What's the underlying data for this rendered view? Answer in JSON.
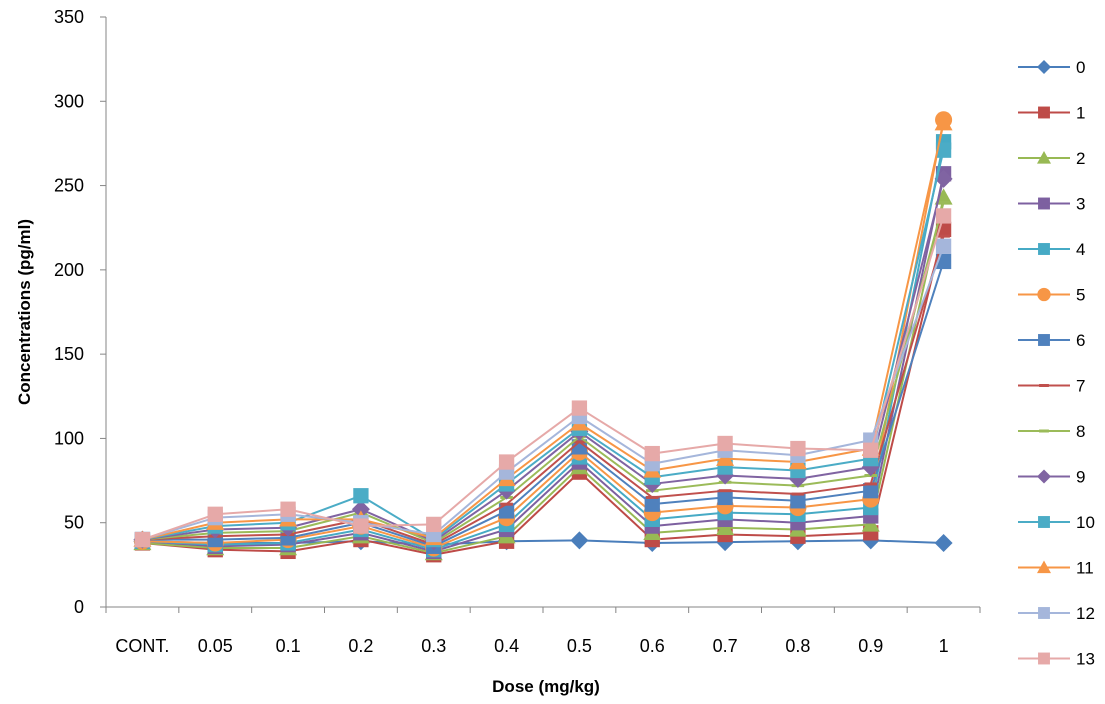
{
  "chart_data": {
    "type": "line",
    "title": "",
    "xlabel": "Dose (mg/kg)",
    "ylabel": "Concentrations (pg/ml)",
    "ylim": [
      0,
      350
    ],
    "y_ticks": [
      "0",
      "50",
      "100",
      "150",
      "200",
      "250",
      "300",
      "350"
    ],
    "grid": false,
    "legend_position": "right",
    "categories": [
      "CONT.",
      "0.05",
      "0.1",
      "0.2",
      "0.3",
      "0.4",
      "0.5",
      "0.6",
      "0.7",
      "0.8",
      "0.9",
      "1"
    ],
    "series": [
      {
        "name": "0",
        "color": "#4A7EBB",
        "marker": "diamond",
        "values": [
          39,
          38,
          38,
          39,
          37,
          39,
          39.5,
          38,
          38.5,
          39,
          39.5,
          38
        ]
      },
      {
        "name": "1",
        "color": "#BE4B48",
        "marker": "square",
        "values": [
          38,
          34,
          33,
          40,
          31,
          39,
          80,
          40,
          43,
          42,
          44,
          224
        ]
      },
      {
        "name": "2",
        "color": "#98B954",
        "marker": "triangle",
        "values": [
          38,
          35,
          35,
          42,
          32,
          42,
          83,
          44,
          47,
          46,
          49,
          243
        ]
      },
      {
        "name": "3",
        "color": "#7D60A0",
        "marker": "square",
        "values": [
          39,
          36,
          37,
          44,
          33,
          46,
          86,
          48,
          52,
          50,
          54,
          257
        ]
      },
      {
        "name": "4",
        "color": "#46AAC5",
        "marker": "square",
        "values": [
          39,
          37,
          38,
          46,
          34,
          49,
          89,
          52,
          56,
          55,
          59,
          276
        ]
      },
      {
        "name": "5",
        "color": "#F79646",
        "marker": "circle",
        "values": [
          39,
          38,
          40,
          48,
          35,
          53,
          92,
          56,
          60,
          59,
          64,
          289
        ]
      },
      {
        "name": "6",
        "color": "#4F81BD",
        "marker": "square",
        "values": [
          40,
          40,
          41,
          50,
          36,
          57,
          95,
          61,
          65,
          63,
          69,
          205
        ]
      },
      {
        "name": "7",
        "color": "#C0504D",
        "marker": "dash",
        "values": [
          40,
          42,
          43,
          52,
          37,
          61,
          98,
          65,
          69,
          67,
          73,
          220
        ]
      },
      {
        "name": "8",
        "color": "#9BBB59",
        "marker": "dash",
        "values": [
          40,
          44,
          45,
          56,
          38,
          65,
          101,
          69,
          74,
          72,
          78,
          240
        ]
      },
      {
        "name": "9",
        "color": "#8064A2",
        "marker": "diamond",
        "values": [
          40,
          46,
          47,
          58,
          39,
          69,
          104,
          73,
          78,
          76,
          83,
          254
        ]
      },
      {
        "name": "10",
        "color": "#4BACC6",
        "marker": "square",
        "values": [
          40,
          48,
          50,
          66,
          40,
          73,
          106,
          77,
          83,
          81,
          88,
          271
        ]
      },
      {
        "name": "11",
        "color": "#F79646",
        "marker": "triangle",
        "values": [
          40,
          50,
          52,
          52,
          41,
          76,
          109,
          81,
          88,
          86,
          94,
          287
        ]
      },
      {
        "name": "12",
        "color": "#A5B6DB",
        "marker": "square",
        "values": [
          40,
          53,
          55,
          50,
          43,
          80,
          113,
          85,
          93,
          90,
          99,
          214
        ]
      },
      {
        "name": "13",
        "color": "#E6A9A8",
        "marker": "square",
        "values": [
          40,
          55,
          58,
          48,
          49,
          86,
          118,
          91,
          97,
          94,
          93,
          232
        ]
      }
    ]
  }
}
